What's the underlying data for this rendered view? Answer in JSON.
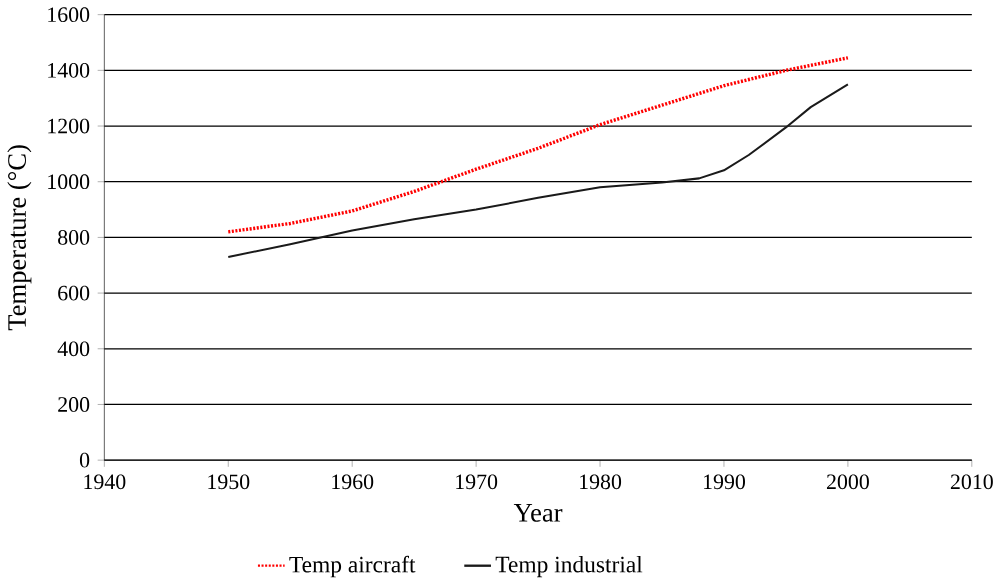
{
  "chart_data": {
    "type": "line",
    "xlabel": "Year",
    "ylabel": "Temperature (°C)",
    "xlim": [
      1940,
      2010
    ],
    "xticks": [
      1940,
      1950,
      1960,
      1970,
      1980,
      1990,
      2000,
      2010
    ],
    "ylim": [
      0,
      1600
    ],
    "yticks": [
      0,
      200,
      400,
      600,
      800,
      1000,
      1200,
      1400,
      1600
    ],
    "grid": "y",
    "legend": "bottom",
    "marker": "none",
    "series": [
      {
        "name": "Temp aircraft",
        "color": "#ff0000",
        "line_style": "dotted",
        "x": [
          1950,
          1955,
          1960,
          1965,
          1970,
          1975,
          1980,
          1985,
          1990,
          1995,
          2000
        ],
        "values": [
          820,
          850,
          895,
          965,
          1045,
          1120,
          1205,
          1275,
          1345,
          1400,
          1445
        ]
      },
      {
        "name": "Temp industrial",
        "color": "#1a1a1a",
        "line_style": "solid",
        "x": [
          1950,
          1955,
          1960,
          1965,
          1970,
          1975,
          1980,
          1985,
          1988,
          1990,
          1992,
          1995,
          1997,
          2000
        ],
        "values": [
          730,
          775,
          825,
          865,
          900,
          942,
          980,
          997,
          1012,
          1041,
          1096,
          1195,
          1268,
          1350
        ]
      }
    ]
  }
}
